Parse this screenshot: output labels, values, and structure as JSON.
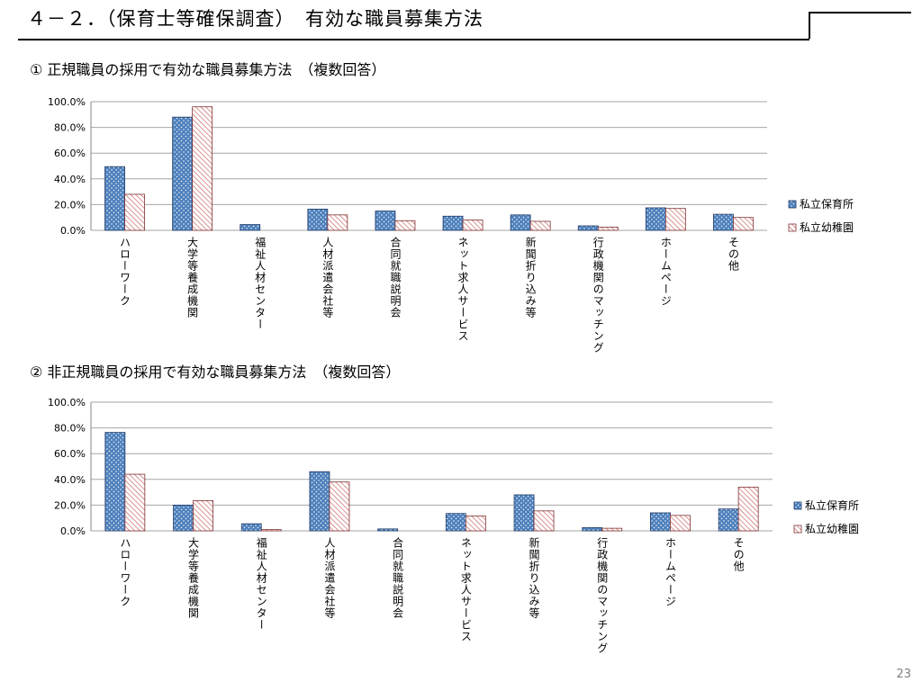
{
  "header": {
    "title": "４－２．（保育士等確保調査）　有効な職員募集方法"
  },
  "page_number": "23",
  "colors": {
    "nursery": "#4f81bd",
    "kindergarten": "#ffffff",
    "kindergarten_hatch": "#c0504d",
    "gridline": "#a6a6a6"
  },
  "sections": [
    {
      "title": "① 正規職員の採用で有効な職員募集方法　（複数回答）"
    },
    {
      "title": "② 非正規職員の採用で有効な職員募集方法　（複数回答）"
    }
  ],
  "chart_data": [
    {
      "type": "bar",
      "title": "",
      "xlabel": "",
      "ylabel": "",
      "categories": [
        "ハローワーク",
        "大学等養成機関",
        "福祉人材センター",
        "人材派遣会社等",
        "合同就職説明会",
        "ネット求人サービス",
        "新聞折り込み等",
        "行政機関のマッチング",
        "ホームページ",
        "その他"
      ],
      "series": [
        {
          "name": "私立保育所",
          "values": [
            49.5,
            88,
            4.5,
            16.5,
            15,
            11,
            12,
            3.5,
            17.5,
            12.5
          ]
        },
        {
          "name": "私立幼稚園",
          "values": [
            28,
            96,
            0,
            12,
            7.5,
            8,
            7,
            2.5,
            17,
            10
          ]
        }
      ],
      "ylim": [
        0,
        100
      ],
      "yticks": [
        "0.0%",
        "20.0%",
        "40.0%",
        "60.0%",
        "80.0%",
        "100.0%"
      ],
      "grid": true,
      "legend": "right"
    },
    {
      "type": "bar",
      "title": "",
      "xlabel": "",
      "ylabel": "",
      "categories": [
        "ハローワーク",
        "大学等養成機関",
        "福祉人材センター",
        "人材派遣会社等",
        "合同就職説明会",
        "ネット求人サービス",
        "新聞折り込み等",
        "行政機関のマッチング",
        "ホームページ",
        "その他"
      ],
      "series": [
        {
          "name": "私立保育所",
          "values": [
            76.5,
            20,
            5.5,
            46,
            1.5,
            13.5,
            28,
            2.5,
            14,
            17
          ]
        },
        {
          "name": "私立幼稚園",
          "values": [
            44,
            23.5,
            1,
            38,
            0,
            11.5,
            15.5,
            2,
            12,
            34
          ]
        }
      ],
      "ylim": [
        0,
        100
      ],
      "yticks": [
        "0.0%",
        "20.0%",
        "40.0%",
        "60.0%",
        "80.0%",
        "100.0%"
      ],
      "grid": true,
      "legend": "right"
    }
  ]
}
